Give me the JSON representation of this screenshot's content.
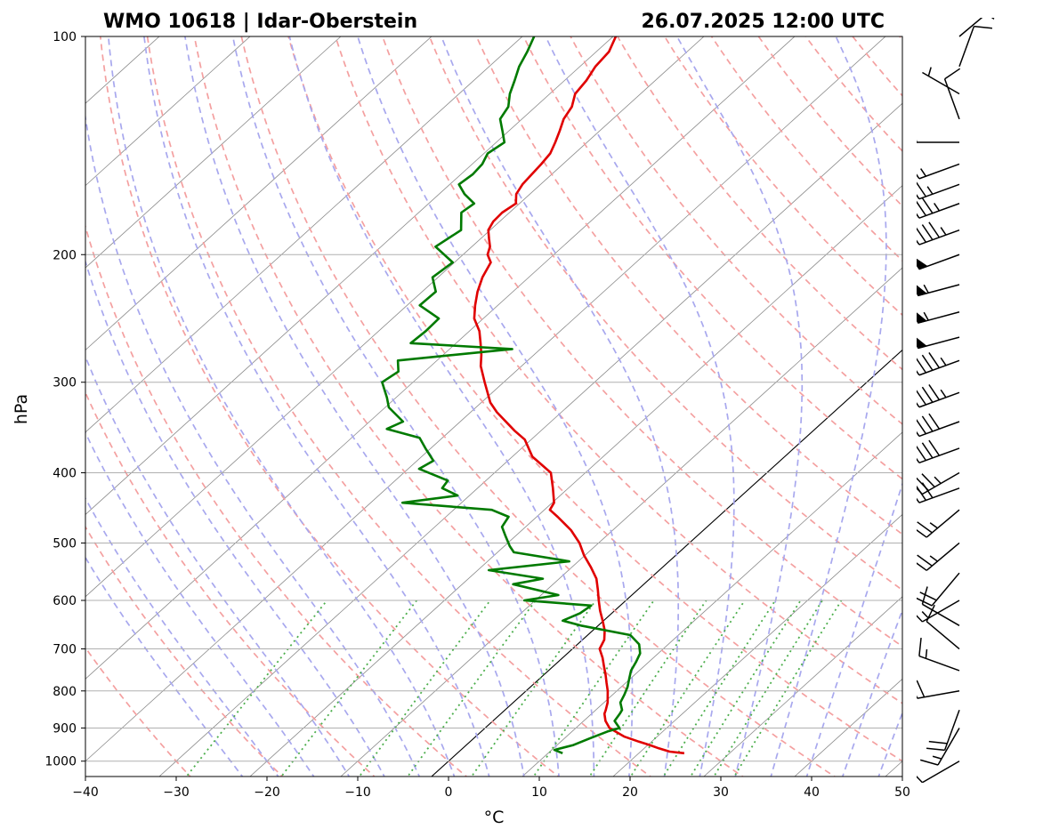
{
  "chart_data": {
    "type": "line",
    "title_left": "WMO 10618 | Idar-Oberstein",
    "title_right": "26.07.2025 12:00 UTC",
    "xlabel": "°C",
    "ylabel": "hPa",
    "xlim": [
      -40,
      50
    ],
    "ylim": [
      1050,
      100
    ],
    "y_scale": "log",
    "skew": "skew-T",
    "x_ticks": [
      -40,
      -30,
      -20,
      -10,
      0,
      10,
      20,
      30,
      40,
      50
    ],
    "x_tick_labels": [
      "−40",
      "−30",
      "−20",
      "−10",
      "0",
      "10",
      "20",
      "30",
      "40",
      "50"
    ],
    "y_ticks": [
      1000,
      900,
      800,
      700,
      600,
      500,
      400,
      300,
      200,
      100
    ],
    "y_tick_labels": [
      "1000",
      "900",
      "800",
      "700",
      "600",
      "500",
      "400",
      "300",
      "200",
      "100"
    ],
    "grid": true,
    "colors": {
      "temperature": "#e00000",
      "dewpoint": "#007a00",
      "dry_adiabats": "#f4a0a0",
      "moist_adiabats": "#a8a8ee",
      "mixing_ratio": "#4cae4c",
      "isotherms": "#8a8a8a",
      "zero_isotherm": "#000000",
      "barbs": "#000000"
    },
    "series": [
      {
        "pressure": [
          975,
          970,
          960,
          950,
          940,
          925,
          900,
          880,
          860,
          850,
          830,
          800,
          780,
          760,
          740,
          720,
          700,
          680,
          660,
          640,
          620,
          600,
          580,
          560,
          540,
          520,
          500,
          480,
          460,
          450,
          440,
          420,
          400,
          380,
          360,
          350,
          330,
          320,
          300,
          285,
          275,
          265,
          255,
          245,
          235,
          225,
          215,
          205,
          200,
          195,
          190,
          185,
          180,
          175,
          170,
          165,
          160,
          155,
          150,
          145,
          140,
          135,
          130,
          125,
          120,
          115,
          110,
          105,
          100
        ],
        "values": [
          25,
          23.2,
          21.6,
          20.2,
          18.6,
          16.4,
          13.7,
          12.4,
          11.4,
          11.1,
          10.4,
          9.0,
          7.9,
          6.8,
          5.6,
          4.4,
          3.0,
          2.4,
          1.3,
          -0.1,
          -1.6,
          -3.0,
          -4.4,
          -5.9,
          -7.9,
          -10.1,
          -12.1,
          -14.6,
          -17.7,
          -19.4,
          -19.8,
          -21.7,
          -23.8,
          -27.8,
          -30.7,
          -32.9,
          -37.1,
          -39.0,
          -42.1,
          -44.5,
          -45.8,
          -47.3,
          -48.9,
          -51.0,
          -52.5,
          -53.9,
          -55.1,
          -56.0,
          -57.3,
          -58.0,
          -59.1,
          -60.2,
          -60.7,
          -60.8,
          -60.4,
          -61.5,
          -62.0,
          -62.2,
          -62.4,
          -62.7,
          -63.5,
          -64.4,
          -65.4,
          -66.0,
          -67.2,
          -67.6,
          -68.3,
          -68.6,
          -69.7
        ]
      },
      {
        "pressure": [
          975,
          965,
          950,
          930,
          910,
          900,
          880,
          860,
          850,
          830,
          810,
          790,
          770,
          750,
          730,
          710,
          690,
          670,
          650,
          640,
          625,
          610,
          600,
          590,
          570,
          560,
          545,
          530,
          515,
          505,
          490,
          475,
          460,
          450,
          440,
          430,
          420,
          410,
          395,
          385,
          370,
          358,
          348,
          340,
          325,
          315,
          300,
          290,
          280,
          270,
          265,
          255,
          245,
          235,
          225,
          215,
          205,
          195,
          185,
          175,
          170,
          165,
          160,
          155,
          150,
          145,
          140,
          135,
          130,
          125,
          120,
          115,
          110,
          105,
          100
        ],
        "values": [
          11.6,
          10.3,
          11.8,
          12.8,
          13.9,
          14.8,
          13.4,
          13.1,
          12.9,
          11.8,
          11.3,
          10.7,
          9.9,
          9.1,
          8.6,
          8.0,
          6.8,
          4.7,
          -1.9,
          -4.5,
          -3.5,
          -3.2,
          -11.2,
          -8.1,
          -14.4,
          -11.8,
          -18.8,
          -11.0,
          -18.2,
          -19.4,
          -21.0,
          -22.6,
          -23.1,
          -25.8,
          -36.5,
          -31.3,
          -33.9,
          -34.2,
          -38.8,
          -38.2,
          -40.6,
          -42.5,
          -47.2,
          -46.3,
          -49.6,
          -51.0,
          -53.4,
          -52.9,
          -54.3,
          -43.1,
          -55.0,
          -54.8,
          -54.9,
          -58.6,
          -58.5,
          -60.6,
          -60.2,
          -64.0,
          -63.2,
          -65.3,
          -65.0,
          -67.2,
          -69.0,
          -68.7,
          -68.9,
          -69.6,
          -69.1,
          -70.7,
          -72.4,
          -73.0,
          -74.4,
          -75.5,
          -76.7,
          -77.6,
          -78.7
        ]
      }
    ],
    "wind_barbs": {
      "pressure": [
        1000,
        900,
        850,
        800,
        750,
        700,
        650,
        600,
        550,
        500,
        450,
        420,
        400,
        370,
        340,
        310,
        280,
        260,
        240,
        220,
        200,
        185,
        170,
        160,
        150,
        140,
        130,
        120,
        110,
        100
      ],
      "speed_kt": [
        10,
        15,
        20,
        20,
        15,
        10,
        10,
        15,
        20,
        25,
        25,
        30,
        35,
        40,
        40,
        45,
        45,
        50,
        55,
        55,
        50,
        45,
        35,
        25,
        15,
        10,
        10,
        5,
        10,
        5
      ],
      "direction_deg": [
        240,
        210,
        200,
        260,
        290,
        310,
        300,
        240,
        220,
        230,
        230,
        250,
        240,
        250,
        250,
        250,
        250,
        255,
        255,
        255,
        250,
        250,
        250,
        250,
        250,
        270,
        340,
        300,
        20,
        50
      ]
    },
    "background_lines": [
      "dry adiabats",
      "moist adiabats",
      "mixing ratio",
      "isotherms"
    ]
  }
}
